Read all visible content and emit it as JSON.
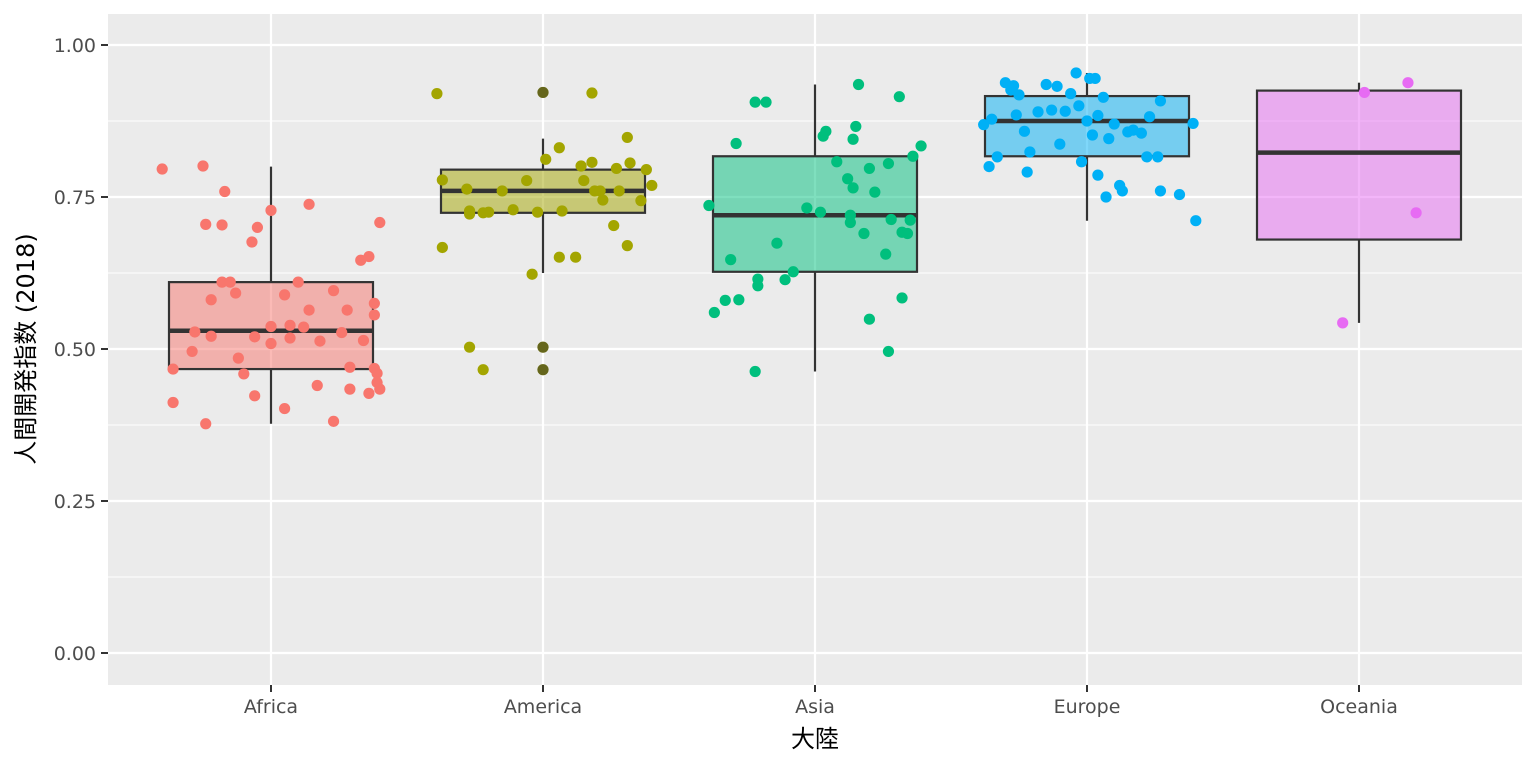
{
  "chart_data": {
    "type": "boxplot_jitter",
    "xlabel": "大陸",
    "ylabel": "人間開発指数 (2018)",
    "ylim": [
      -0.05,
      1.05
    ],
    "yticks": [
      0.0,
      0.25,
      0.5,
      0.75,
      1.0
    ],
    "ytick_labels": [
      "0.00",
      "0.25",
      "0.50",
      "0.75",
      "1.00"
    ],
    "categories": [
      "Africa",
      "America",
      "Asia",
      "Europe",
      "Oceania"
    ],
    "colors": {
      "Africa": "#F8766D",
      "America": "#A3A500",
      "Asia": "#00BF7D",
      "Europe": "#00B0F6",
      "Oceania": "#E76BF3"
    },
    "outlier_color": "#333333",
    "boxes": [
      {
        "category": "Africa",
        "q1": 0.467,
        "median": 0.53,
        "q3": 0.61,
        "whisker_low": 0.377,
        "whisker_high": 0.8,
        "outliers": []
      },
      {
        "category": "America",
        "q1": 0.724,
        "median": 0.76,
        "q3": 0.795,
        "whisker_low": 0.625,
        "whisker_high": 0.846,
        "outliers": [
          0.922,
          0.503,
          0.466
        ]
      },
      {
        "category": "Asia",
        "q1": 0.627,
        "median": 0.72,
        "q3": 0.817,
        "whisker_low": 0.463,
        "whisker_high": 0.935,
        "outliers": []
      },
      {
        "category": "Europe",
        "q1": 0.817,
        "median": 0.875,
        "q3": 0.916,
        "whisker_low": 0.711,
        "whisker_high": 0.954,
        "outliers": []
      },
      {
        "category": "Oceania",
        "q1": 0.68,
        "median": 0.823,
        "q3": 0.925,
        "whisker_low": 0.543,
        "whisker_high": 0.938,
        "outliers": []
      }
    ],
    "points": [
      {
        "category": "Africa",
        "values": [
          [
            -0.4,
            0.796
          ],
          [
            -0.25,
            0.801
          ],
          [
            -0.17,
            0.759
          ],
          [
            -0.24,
            0.705
          ],
          [
            -0.18,
            0.704
          ],
          [
            0.0,
            0.728
          ],
          [
            0.14,
            0.738
          ],
          [
            0.4,
            0.708
          ],
          [
            -0.05,
            0.7
          ],
          [
            -0.07,
            0.676
          ],
          [
            -0.36,
            0.467
          ],
          [
            -0.36,
            0.412
          ],
          [
            -0.24,
            0.377
          ],
          [
            -0.29,
            0.496
          ],
          [
            -0.28,
            0.528
          ],
          [
            -0.22,
            0.521
          ],
          [
            -0.22,
            0.581
          ],
          [
            -0.18,
            0.61
          ],
          [
            -0.15,
            0.61
          ],
          [
            -0.13,
            0.592
          ],
          [
            -0.12,
            0.485
          ],
          [
            -0.1,
            0.459
          ],
          [
            -0.06,
            0.423
          ],
          [
            -0.06,
            0.52
          ],
          [
            0.0,
            0.509
          ],
          [
            0.0,
            0.537
          ],
          [
            0.05,
            0.402
          ],
          [
            0.05,
            0.589
          ],
          [
            0.07,
            0.539
          ],
          [
            0.07,
            0.518
          ],
          [
            0.1,
            0.61
          ],
          [
            0.12,
            0.536
          ],
          [
            0.14,
            0.564
          ],
          [
            0.17,
            0.44
          ],
          [
            0.18,
            0.513
          ],
          [
            0.23,
            0.381
          ],
          [
            0.23,
            0.596
          ],
          [
            0.26,
            0.527
          ],
          [
            0.28,
            0.564
          ],
          [
            0.29,
            0.47
          ],
          [
            0.29,
            0.434
          ],
          [
            0.33,
            0.646
          ],
          [
            0.34,
            0.514
          ],
          [
            0.36,
            0.652
          ],
          [
            0.36,
            0.427
          ],
          [
            0.38,
            0.556
          ],
          [
            0.38,
            0.575
          ],
          [
            0.38,
            0.468
          ],
          [
            0.39,
            0.46
          ],
          [
            0.39,
            0.445
          ],
          [
            0.4,
            0.434
          ]
        ]
      },
      {
        "category": "America",
        "values": [
          [
            -0.39,
            0.92
          ],
          [
            0.18,
            0.921
          ],
          [
            0.0,
            0.922
          ],
          [
            -0.37,
            0.778
          ],
          [
            -0.37,
            0.667
          ],
          [
            -0.27,
            0.722
          ],
          [
            -0.28,
            0.763
          ],
          [
            -0.27,
            0.727
          ],
          [
            -0.22,
            0.724
          ],
          [
            -0.2,
            0.725
          ],
          [
            -0.15,
            0.76
          ],
          [
            -0.11,
            0.729
          ],
          [
            -0.06,
            0.777
          ],
          [
            -0.04,
            0.623
          ],
          [
            -0.02,
            0.725
          ],
          [
            0.01,
            0.812
          ],
          [
            0.06,
            0.831
          ],
          [
            0.06,
            0.651
          ],
          [
            0.07,
            0.727
          ],
          [
            0.12,
            0.651
          ],
          [
            0.14,
            0.801
          ],
          [
            0.15,
            0.777
          ],
          [
            0.18,
            0.807
          ],
          [
            0.19,
            0.76
          ],
          [
            0.21,
            0.76
          ],
          [
            0.22,
            0.745
          ],
          [
            0.26,
            0.703
          ],
          [
            0.27,
            0.797
          ],
          [
            0.28,
            0.76
          ],
          [
            0.31,
            0.848
          ],
          [
            0.31,
            0.67
          ],
          [
            0.32,
            0.806
          ],
          [
            0.36,
            0.744
          ],
          [
            0.38,
            0.795
          ],
          [
            0.4,
            0.769
          ],
          [
            -0.27,
            0.503
          ],
          [
            -0.22,
            0.466
          ],
          [
            0.0,
            0.503
          ],
          [
            0.0,
            0.466
          ]
        ]
      },
      {
        "category": "Asia",
        "values": [
          [
            -0.22,
            0.906
          ],
          [
            -0.18,
            0.906
          ],
          [
            -0.29,
            0.838
          ],
          [
            0.03,
            0.85
          ],
          [
            0.04,
            0.858
          ],
          [
            0.16,
            0.935
          ],
          [
            0.31,
            0.915
          ],
          [
            0.15,
            0.866
          ],
          [
            0.14,
            0.845
          ],
          [
            0.39,
            0.834
          ],
          [
            -0.39,
            0.736
          ],
          [
            -0.31,
            0.647
          ],
          [
            -0.37,
            0.56
          ],
          [
            -0.33,
            0.58
          ],
          [
            -0.28,
            0.581
          ],
          [
            -0.21,
            0.615
          ],
          [
            -0.21,
            0.604
          ],
          [
            -0.14,
            0.674
          ],
          [
            -0.11,
            0.614
          ],
          [
            -0.08,
            0.627
          ],
          [
            -0.03,
            0.732
          ],
          [
            0.02,
            0.725
          ],
          [
            0.08,
            0.808
          ],
          [
            0.12,
            0.78
          ],
          [
            0.13,
            0.72
          ],
          [
            0.13,
            0.708
          ],
          [
            0.14,
            0.765
          ],
          [
            0.18,
            0.69
          ],
          [
            0.2,
            0.797
          ],
          [
            0.22,
            0.758
          ],
          [
            0.26,
            0.656
          ],
          [
            0.27,
            0.805
          ],
          [
            0.28,
            0.713
          ],
          [
            0.32,
            0.692
          ],
          [
            0.34,
            0.69
          ],
          [
            0.36,
            0.817
          ],
          [
            0.35,
            0.712
          ],
          [
            0.32,
            0.584
          ],
          [
            0.2,
            0.549
          ],
          [
            0.27,
            0.496
          ],
          [
            -0.22,
            0.463
          ]
        ]
      },
      {
        "category": "Europe",
        "values": [
          [
            -0.38,
            0.869
          ],
          [
            -0.36,
            0.8
          ],
          [
            -0.33,
            0.816
          ],
          [
            -0.3,
            0.938
          ],
          [
            -0.28,
            0.926
          ],
          [
            -0.27,
            0.933
          ],
          [
            -0.26,
            0.885
          ],
          [
            -0.25,
            0.918
          ],
          [
            -0.23,
            0.858
          ],
          [
            -0.22,
            0.791
          ],
          [
            -0.21,
            0.824
          ],
          [
            -0.18,
            0.89
          ],
          [
            -0.15,
            0.935
          ],
          [
            -0.13,
            0.893
          ],
          [
            -0.11,
            0.932
          ],
          [
            -0.1,
            0.837
          ],
          [
            -0.08,
            0.891
          ],
          [
            -0.06,
            0.92
          ],
          [
            -0.04,
            0.954
          ],
          [
            -0.03,
            0.9
          ],
          [
            -0.02,
            0.808
          ],
          [
            0.02,
            0.852
          ],
          [
            0.03,
            0.945
          ],
          [
            0.04,
            0.884
          ],
          [
            0.04,
            0.786
          ],
          [
            0.06,
            0.914
          ],
          [
            0.07,
            0.75
          ],
          [
            0.08,
            0.846
          ],
          [
            0.1,
            0.87
          ],
          [
            0.12,
            0.769
          ],
          [
            0.13,
            0.76
          ],
          [
            0.15,
            0.857
          ],
          [
            0.17,
            0.86
          ],
          [
            0.2,
            0.855
          ],
          [
            0.22,
            0.816
          ],
          [
            0.23,
            0.882
          ],
          [
            0.26,
            0.816
          ],
          [
            0.27,
            0.908
          ],
          [
            0.34,
            0.754
          ],
          [
            0.39,
            0.871
          ],
          [
            0.4,
            0.711
          ],
          [
            0.27,
            0.76
          ],
          [
            0.0,
            0.875
          ],
          [
            -0.35,
            0.878
          ],
          [
            0.01,
            0.945
          ]
        ]
      },
      {
        "category": "Oceania",
        "values": [
          [
            0.02,
            0.922
          ],
          [
            0.18,
            0.938
          ],
          [
            0.21,
            0.724
          ],
          [
            -0.06,
            0.543
          ]
        ]
      }
    ]
  }
}
